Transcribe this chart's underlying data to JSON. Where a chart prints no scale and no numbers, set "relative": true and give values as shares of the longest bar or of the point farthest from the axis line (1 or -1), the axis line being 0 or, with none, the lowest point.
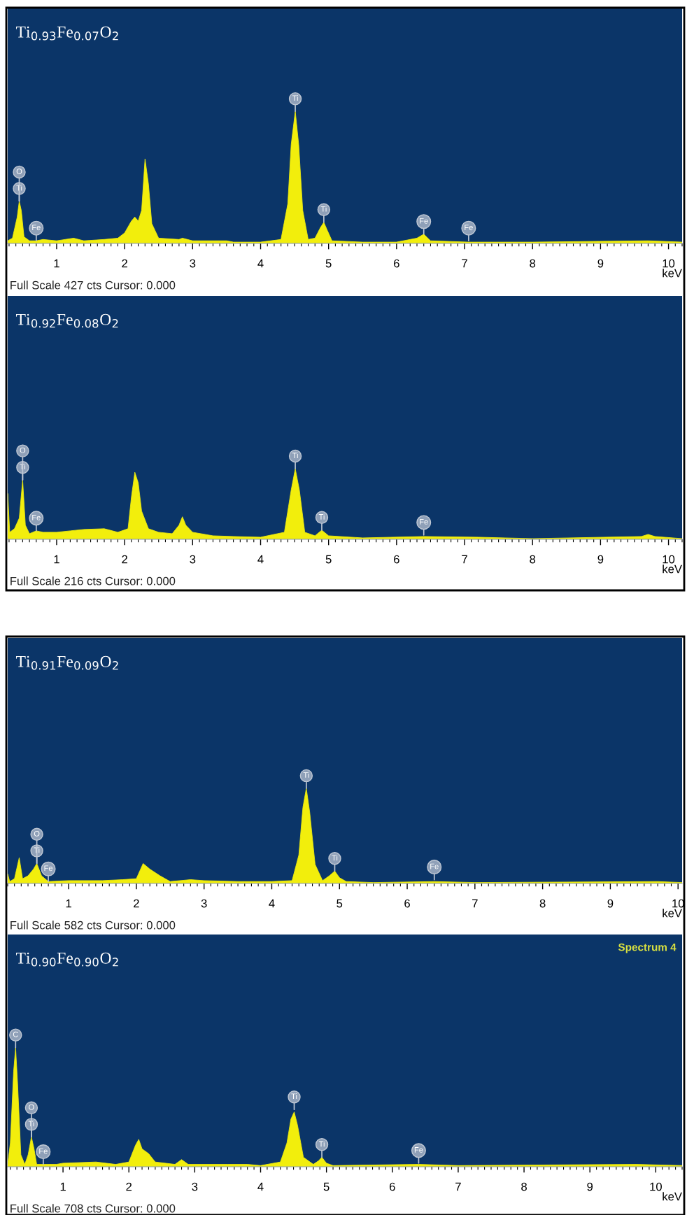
{
  "chart_data": [
    {
      "type": "area",
      "title": "Ti$_{0.93}$Fe$_{0.07}$O$_{2}$",
      "xlabel": "keV",
      "relative": true,
      "color": "#f2ee0c",
      "xlim": [
        0.28,
        10.2
      ],
      "xticks": [
        1,
        2,
        3,
        4,
        5,
        6,
        7,
        8,
        9,
        10
      ],
      "x": [
        0.28,
        0.35,
        0.42,
        0.45,
        0.48,
        0.52,
        0.6,
        0.7,
        0.8,
        1.0,
        1.25,
        1.4,
        1.7,
        1.9,
        2.0,
        2.1,
        2.15,
        2.2,
        2.25,
        2.3,
        2.35,
        2.4,
        2.5,
        2.8,
        2.85,
        3.0,
        3.5,
        3.6,
        4.0,
        4.3,
        4.4,
        4.45,
        4.51,
        4.56,
        4.62,
        4.7,
        4.8,
        4.88,
        4.93,
        4.98,
        5.05,
        5.5,
        6.0,
        6.3,
        6.4,
        6.5,
        7.05,
        8.0,
        9.7,
        10.2
      ],
      "values": [
        0.02,
        0.04,
        0.2,
        0.32,
        0.25,
        0.05,
        0.02,
        0.02,
        0.03,
        0.02,
        0.04,
        0.02,
        0.03,
        0.04,
        0.08,
        0.17,
        0.2,
        0.17,
        0.25,
        0.64,
        0.45,
        0.15,
        0.04,
        0.03,
        0.04,
        0.02,
        0.02,
        0.01,
        0.01,
        0.03,
        0.3,
        0.75,
        1.0,
        0.75,
        0.25,
        0.03,
        0.04,
        0.12,
        0.16,
        0.1,
        0.02,
        0.01,
        0.01,
        0.04,
        0.07,
        0.02,
        0.01,
        0.01,
        0.02,
        0.01
      ],
      "annotations": [
        {
          "text": "Ti",
          "x": 0.45,
          "y": 0.32
        },
        {
          "text": "O",
          "x": 0.45,
          "y": 0.32
        },
        {
          "text": "Fe",
          "x": 0.7,
          "y": 0.02
        },
        {
          "text": "Ti",
          "x": 4.51,
          "y": 1.0
        },
        {
          "text": "Ti",
          "x": 4.93,
          "y": 0.16
        },
        {
          "text": "Fe",
          "x": 6.4,
          "y": 0.07
        },
        {
          "text": "Fe",
          "x": 7.06,
          "y": 0.02
        },
        "Full Scale 427 cts Cursor: 0.000"
      ]
    },
    {
      "type": "area",
      "title": "Ti$_{0.92}$Fe$_{0.08}$O$_{2}$",
      "xlabel": "keV",
      "relative": true,
      "color": "#f2ee0c",
      "xlim": [
        0.28,
        10.2
      ],
      "xticks": [
        1,
        2,
        3,
        4,
        5,
        6,
        7,
        8,
        9,
        10
      ],
      "x": [
        0.28,
        0.31,
        0.38,
        0.45,
        0.5,
        0.54,
        0.6,
        0.7,
        0.8,
        1.0,
        1.2,
        1.4,
        1.7,
        1.9,
        2.05,
        2.1,
        2.15,
        2.2,
        2.25,
        2.35,
        2.5,
        2.7,
        2.8,
        2.85,
        2.9,
        3.0,
        3.3,
        3.6,
        4.0,
        4.35,
        4.45,
        4.51,
        4.57,
        4.65,
        4.8,
        4.9,
        5.0,
        5.5,
        6.4,
        7.2,
        8.0,
        9.6,
        9.7,
        9.8,
        10.2
      ],
      "values": [
        0.65,
        0.1,
        0.15,
        0.3,
        0.84,
        0.2,
        0.08,
        0.12,
        0.1,
        0.1,
        0.12,
        0.14,
        0.15,
        0.1,
        0.15,
        0.6,
        0.95,
        0.8,
        0.4,
        0.15,
        0.1,
        0.08,
        0.2,
        0.32,
        0.2,
        0.1,
        0.05,
        0.04,
        0.03,
        0.1,
        0.7,
        1.0,
        0.7,
        0.1,
        0.05,
        0.13,
        0.05,
        0.02,
        0.04,
        0.03,
        0.01,
        0.04,
        0.07,
        0.04,
        0.01
      ],
      "annotations": [
        {
          "text": "Ti",
          "x": 0.5,
          "y": 0.84
        },
        {
          "text": "O",
          "x": 0.5,
          "y": 0.84
        },
        {
          "text": "Fe",
          "x": 0.7,
          "y": 0.12
        },
        {
          "text": "Ti",
          "x": 4.51,
          "y": 1.0
        },
        {
          "text": "Ti",
          "x": 4.9,
          "y": 0.13
        },
        {
          "text": "Fe",
          "x": 6.4,
          "y": 0.06
        },
        "Full Scale 216 cts Cursor: 0.000"
      ]
    },
    {
      "type": "area",
      "title": "Ti$_{0.91}$Fe$_{0.09}$O$_{2}$",
      "xlabel": "keV",
      "relative": true,
      "color": "#f2ee0c",
      "xlim": [
        0.1,
        10.06
      ],
      "xticks": [
        1,
        2,
        3,
        4,
        5,
        6,
        7,
        8,
        9,
        10
      ],
      "x": [
        0.1,
        0.13,
        0.2,
        0.27,
        0.32,
        0.4,
        0.48,
        0.53,
        0.6,
        0.7,
        1.0,
        1.5,
        1.8,
        2.0,
        2.1,
        2.2,
        2.35,
        2.5,
        2.8,
        3.0,
        3.5,
        4.0,
        4.3,
        4.4,
        4.46,
        4.51,
        4.56,
        4.64,
        4.75,
        4.85,
        4.93,
        5.0,
        5.1,
        5.5,
        6.4,
        7.0,
        9.7,
        10.06
      ],
      "values": [
        0.1,
        0.02,
        0.05,
        0.27,
        0.05,
        0.08,
        0.15,
        0.21,
        0.08,
        0.02,
        0.03,
        0.03,
        0.04,
        0.05,
        0.21,
        0.15,
        0.08,
        0.02,
        0.04,
        0.03,
        0.02,
        0.02,
        0.03,
        0.3,
        0.8,
        1.0,
        0.75,
        0.2,
        0.03,
        0.08,
        0.13,
        0.06,
        0.02,
        0.01,
        0.02,
        0.01,
        0.02,
        0.01
      ],
      "annotations": [
        {
          "text": "Ti",
          "x": 0.53,
          "y": 0.21
        },
        {
          "text": "O",
          "x": 0.53,
          "y": 0.21
        },
        {
          "text": "Fe",
          "x": 0.7,
          "y": 0.02
        },
        {
          "text": "Ti",
          "x": 4.51,
          "y": 1.0
        },
        {
          "text": "Ti",
          "x": 4.93,
          "y": 0.13
        },
        {
          "text": "Fe",
          "x": 6.4,
          "y": 0.04
        },
        "Full Scale 582 cts Cursor: 0.000"
      ]
    },
    {
      "type": "area",
      "title": "Ti$_{0.90}$Fe$_{0.90}$O$_{2}$",
      "xlabel": "keV",
      "relative": true,
      "color": "#f2ee0c",
      "xlim": [
        0.16,
        10.4
      ],
      "xticks": [
        1,
        2,
        3,
        4,
        5,
        6,
        7,
        8,
        9,
        10
      ],
      "x": [
        0.16,
        0.2,
        0.25,
        0.28,
        0.31,
        0.36,
        0.42,
        0.47,
        0.52,
        0.56,
        0.6,
        0.7,
        0.9,
        1.0,
        1.5,
        1.8,
        2.0,
        2.1,
        2.15,
        2.2,
        2.3,
        2.4,
        2.7,
        2.8,
        2.9,
        3.5,
        3.8,
        4.0,
        4.3,
        4.4,
        4.46,
        4.51,
        4.56,
        4.65,
        4.8,
        4.88,
        4.93,
        5.0,
        5.1,
        6.4,
        7.0,
        9.7,
        10.4
      ],
      "values": [
        0.02,
        0.2,
        0.8,
        1.0,
        0.7,
        0.1,
        0.02,
        0.1,
        0.25,
        0.15,
        0.02,
        0.02,
        0.02,
        0.03,
        0.04,
        0.02,
        0.04,
        0.18,
        0.23,
        0.15,
        0.11,
        0.04,
        0.02,
        0.06,
        0.02,
        0.02,
        0.02,
        0.01,
        0.04,
        0.2,
        0.4,
        0.46,
        0.35,
        0.08,
        0.02,
        0.05,
        0.08,
        0.03,
        0.01,
        0.02,
        0.01,
        0.02,
        0.01
      ],
      "annotations": [
        {
          "text": "C",
          "x": 0.28,
          "y": 1.0
        },
        {
          "text": "Ti",
          "x": 0.52,
          "y": 0.25
        },
        {
          "text": "O",
          "x": 0.52,
          "y": 0.25
        },
        {
          "text": "Fe",
          "x": 0.7,
          "y": 0.02
        },
        {
          "text": "Ti",
          "x": 4.51,
          "y": 0.48
        },
        {
          "text": "Ti",
          "x": 4.93,
          "y": 0.08
        },
        {
          "text": "Fe",
          "x": 6.4,
          "y": 0.03
        },
        "Full Scale 708 cts Cursor: 0.000",
        "Spectrum 4"
      ]
    }
  ]
}
